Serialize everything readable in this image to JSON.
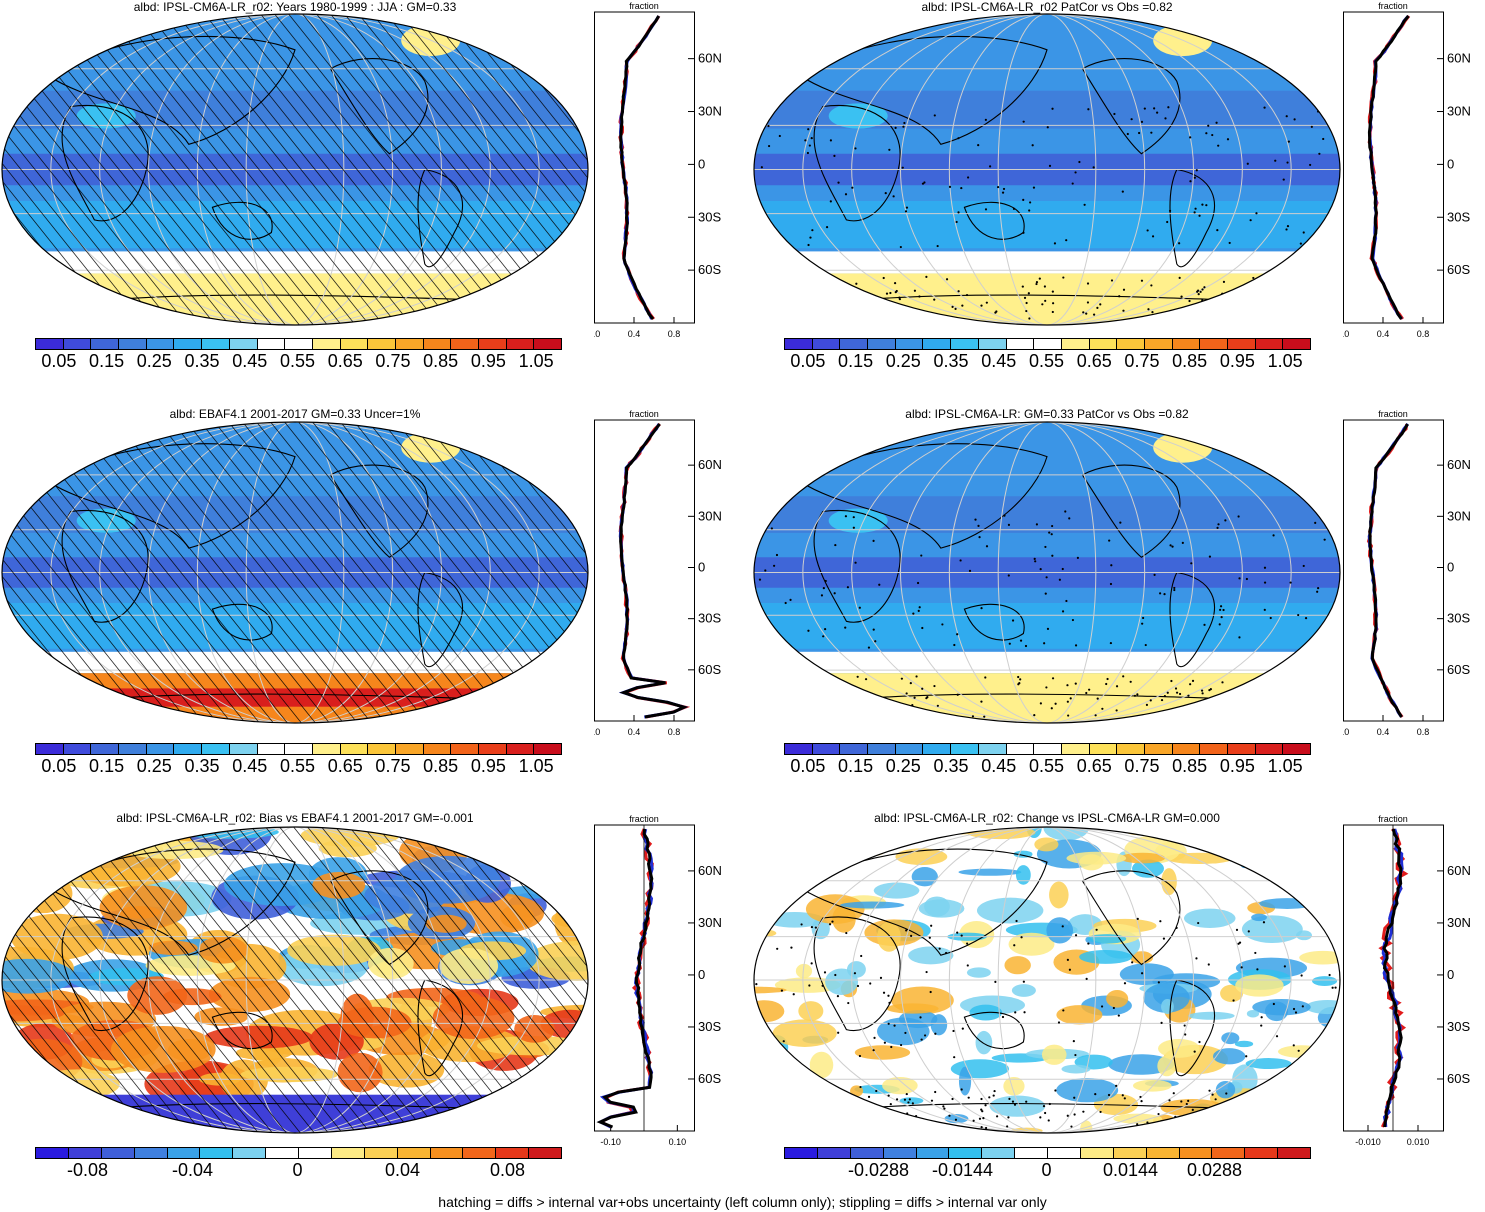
{
  "colors": {
    "seq_palette": [
      "#3b2bd9",
      "#3f4bdc",
      "#3f66d8",
      "#3f7fdb",
      "#3b95e6",
      "#30abef",
      "#3ac1f2",
      "#7dd2ef",
      "#ffffff",
      "#ffffff",
      "#fff08c",
      "#fde15a",
      "#fbc63a",
      "#f9a628",
      "#f6861c",
      "#f2631a",
      "#e93e1a",
      "#d91f1d",
      "#c90d1c"
    ],
    "div_palette": [
      "#2a1be0",
      "#3f3fd8",
      "#3f5fd9",
      "#3f80df",
      "#3aa2e8",
      "#33bfee",
      "#7cd2f0",
      "#ffffff",
      "#ffffff",
      "#fdeb86",
      "#fbd055",
      "#f9b432",
      "#f6901f",
      "#f2661a",
      "#e6381a",
      "#cf1a1c"
    ]
  },
  "panels": [
    {
      "title": "albd: IPSL-CM6A-LR_r02: Years 1980-1999 : JJA : GM=0.33",
      "kind": "abs",
      "cb_labels": [
        "0.05",
        "0.15",
        "0.25",
        "0.35",
        "0.45",
        "0.55",
        "0.65",
        "0.75",
        "0.85",
        "0.95",
        "1.05"
      ],
      "zonal_title": "fraction",
      "zonal_xticks": [
        "0.0",
        "0.4",
        "0.8"
      ],
      "zonal_xrange": [
        0,
        1.0
      ],
      "lat_labels": [
        "60N",
        "30N",
        "0",
        "30S",
        "60S"
      ]
    },
    {
      "title": "albd: IPSL-CM6A-LR_r02 PatCor vs Obs =0.82",
      "kind": "abs",
      "cb_labels": [
        "0.05",
        "0.15",
        "0.25",
        "0.35",
        "0.45",
        "0.55",
        "0.65",
        "0.75",
        "0.85",
        "0.95",
        "1.05"
      ],
      "zonal_title": "fraction",
      "zonal_xticks": [
        "0.0",
        "0.4",
        "0.8"
      ],
      "zonal_xrange": [
        0,
        1.0
      ],
      "lat_labels": [
        "60N",
        "30N",
        "0",
        "30S",
        "60S"
      ]
    },
    {
      "title": "albd: EBAF4.1 2001-2017 GM=0.33 Uncer=1%",
      "kind": "abs",
      "cb_labels": [
        "0.05",
        "0.15",
        "0.25",
        "0.35",
        "0.45",
        "0.55",
        "0.65",
        "0.75",
        "0.85",
        "0.95",
        "1.05"
      ],
      "zonal_title": "fraction",
      "zonal_xticks": [
        "0.0",
        "0.4",
        "0.8"
      ],
      "zonal_xrange": [
        0,
        1.0
      ],
      "lat_labels": [
        "60N",
        "30N",
        "0",
        "30S",
        "60S"
      ]
    },
    {
      "title": "albd: IPSL-CM6A-LR: GM=0.33 PatCor vs Obs =0.82",
      "kind": "abs",
      "cb_labels": [
        "0.05",
        "0.15",
        "0.25",
        "0.35",
        "0.45",
        "0.55",
        "0.65",
        "0.75",
        "0.85",
        "0.95",
        "1.05"
      ],
      "zonal_title": "fraction",
      "zonal_xticks": [
        "0.0",
        "0.4",
        "0.8"
      ],
      "zonal_xrange": [
        0,
        1.0
      ],
      "lat_labels": [
        "60N",
        "30N",
        "0",
        "30S",
        "60S"
      ]
    },
    {
      "title": "albd: IPSL-CM6A-LR_r02: Bias vs EBAF4.1 2001-2017 GM=-0.001",
      "kind": "bias",
      "cb_labels": [
        "-0.08",
        "-0.04",
        "0",
        "0.04",
        "0.08"
      ],
      "zonal_title": "fraction",
      "zonal_xticks": [
        "-0.10",
        "0.10"
      ],
      "zonal_xrange": [
        -0.15,
        0.15
      ],
      "lat_labels": [
        "60N",
        "30N",
        "0",
        "30S",
        "60S"
      ]
    },
    {
      "title": "albd: IPSL-CM6A-LR_r02: Change vs IPSL-CM6A-LR GM=0.000",
      "kind": "change",
      "cb_labels": [
        "-0.0288",
        "-0.0144",
        "0",
        "0.0144",
        "0.0288"
      ],
      "zonal_title": "fraction",
      "zonal_xticks": [
        "-0.010",
        "0.010"
      ],
      "zonal_xrange": [
        -0.02,
        0.02
      ],
      "lat_labels": [
        "60N",
        "30N",
        "0",
        "30S",
        "60S"
      ]
    }
  ],
  "footer": "hatching = diffs > internal var+obs uncertainty (left column only); stippling = diffs > internal var only"
}
